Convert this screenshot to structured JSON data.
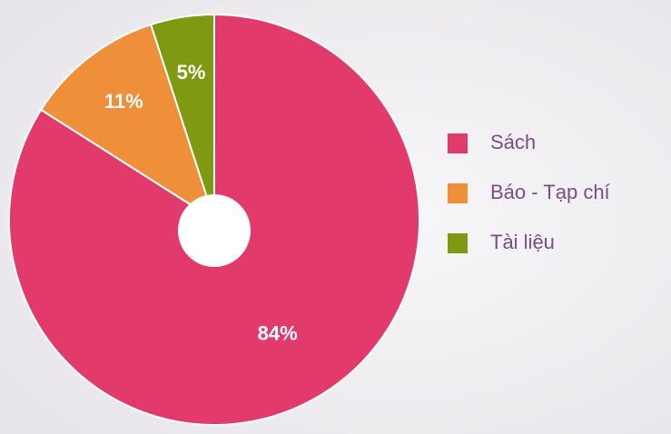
{
  "chart_data": {
    "type": "pie",
    "categories": [
      "Sách",
      "Báo - Tạp chí",
      "Tài liệu"
    ],
    "values": [
      84,
      11,
      5
    ],
    "value_labels": [
      "84%",
      "11%",
      "5%"
    ],
    "colors": [
      "#e33a6c",
      "#ef8f3a",
      "#7f9a12"
    ]
  }
}
